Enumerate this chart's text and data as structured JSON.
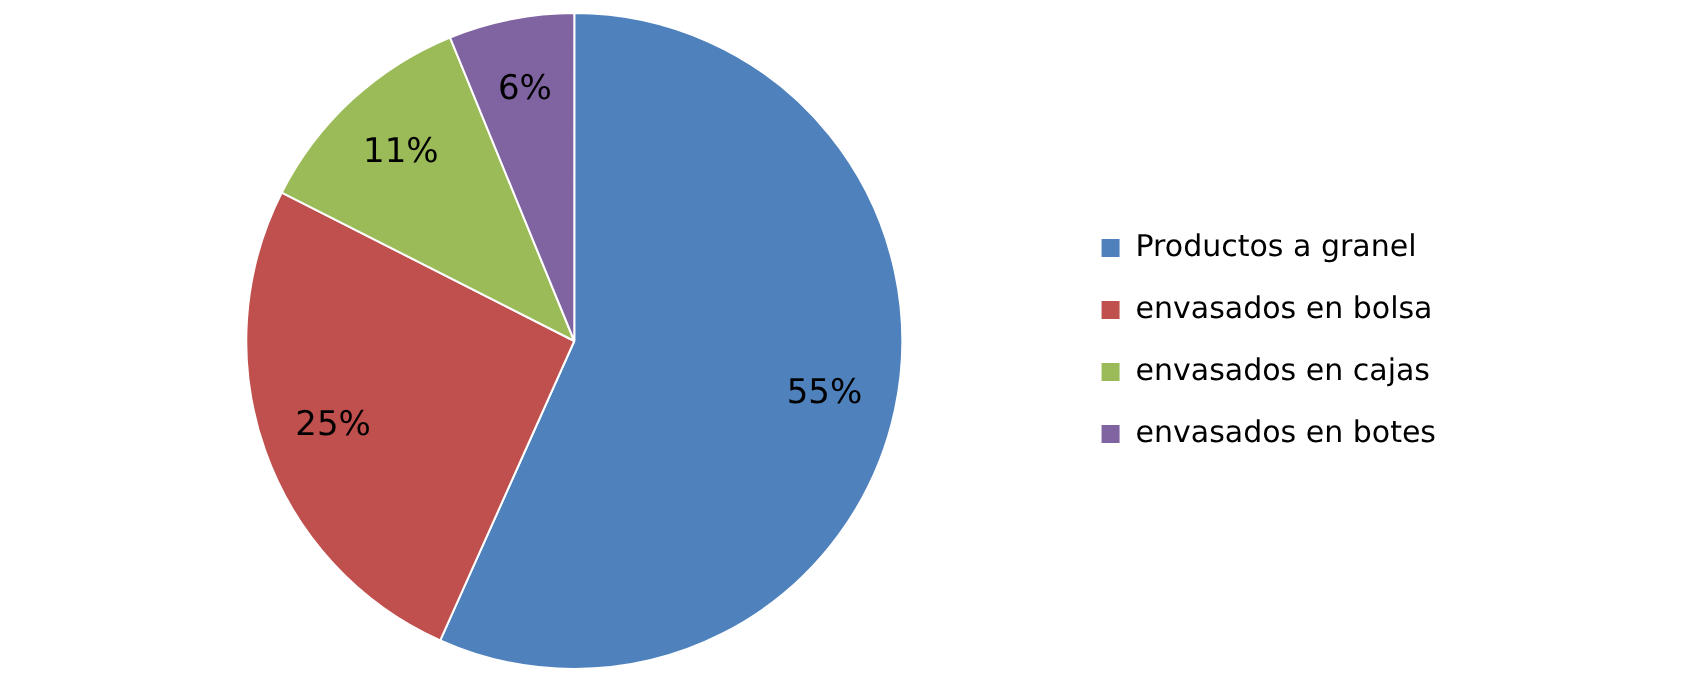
{
  "chart_data": {
    "type": "pie",
    "categories": [
      "Productos a granel",
      "envasados en bolsa",
      "envasados en cajas",
      "envasados en botes"
    ],
    "values": [
      55,
      25,
      11,
      6
    ],
    "colors": [
      "#4f81bd",
      "#c0504d",
      "#9bbb59",
      "#8064a2"
    ],
    "value_labels": [
      "55%",
      "25%",
      "11%",
      "6%"
    ],
    "legend": "right"
  }
}
